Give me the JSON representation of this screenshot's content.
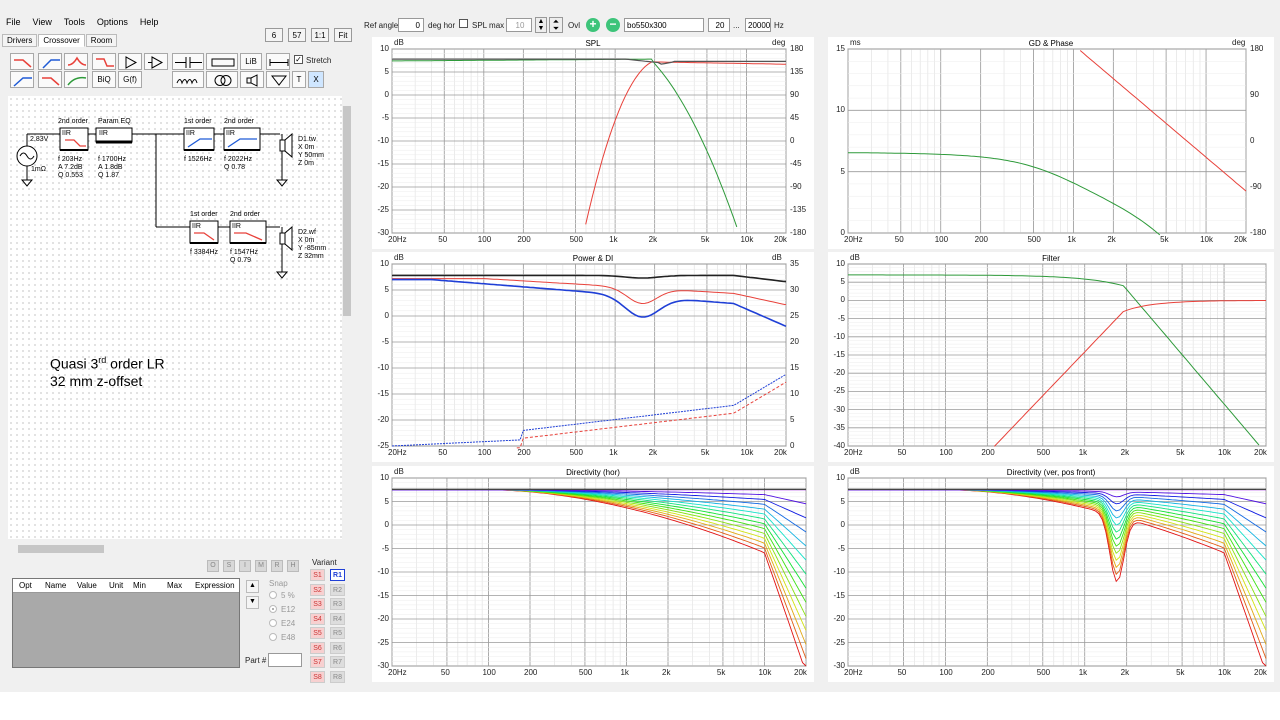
{
  "menu": [
    "File",
    "View",
    "Tools",
    "Options",
    "Help"
  ],
  "tabs": [
    "Drivers",
    "Crossover",
    "Room"
  ],
  "zoom_buttons": [
    "6",
    "57",
    "1:1",
    "Fit"
  ],
  "toolbar": {
    "lib": "LiB",
    "biq": "BiQ",
    "gf": "G(f)",
    "t": "T",
    "x": "X",
    "stretch": "Stretch"
  },
  "schematic": {
    "source_voltage": "2.83V",
    "source_impedance": "1mΩ",
    "blocks": {
      "b1": {
        "title": "2nd order",
        "type": "IIR",
        "params": [
          "f  203Hz",
          "A  7.2dB",
          "Q  0.553"
        ]
      },
      "b2": {
        "title": "Param EQ",
        "type": "IIR",
        "params": [
          "f   1700Hz",
          "A   1.8dB",
          "Q   1.87"
        ]
      },
      "b3": {
        "title": "1st order",
        "type": "IIR",
        "params": [
          "f   1526Hz"
        ]
      },
      "b4": {
        "title": "2nd order",
        "type": "IIR",
        "params": [
          "f   2022Hz",
          "Q  0.78"
        ]
      },
      "b5": {
        "title": "1st order",
        "type": "IIR",
        "params": [
          "f   3384Hz"
        ]
      },
      "b6": {
        "title": "2nd order",
        "type": "IIR",
        "params": [
          "f   1547Hz",
          "Q  0.79"
        ]
      }
    },
    "d1": [
      "D1.tw",
      "X 0m",
      "Y 50mm",
      "Z 0m"
    ],
    "d2": [
      "D2.wf",
      "X 0m",
      "Y -85mm",
      "Z 32mm"
    ]
  },
  "note": {
    "line1_a": "Quasi 3",
    "line1_sup": "rd",
    "line1_b": " order LR",
    "line2": "32 mm z-offset"
  },
  "param_table": {
    "columns": [
      "Opt",
      "Name",
      "Value",
      "Unit",
      "Min",
      "Max",
      "Expression"
    ]
  },
  "osimrh": [
    "O",
    "S",
    "I",
    "M",
    "R",
    "H"
  ],
  "snap": {
    "label": "Snap",
    "options": [
      "5 %",
      "E12",
      "E24",
      "E48"
    ],
    "selected": "E12"
  },
  "part_label": "Part #",
  "variant": {
    "label": "Variant",
    "s": [
      "S1",
      "S2",
      "S3",
      "S4",
      "S5",
      "S6",
      "S7",
      "S8"
    ],
    "r": [
      "R1",
      "R2",
      "R3",
      "R4",
      "R5",
      "R6",
      "R7",
      "R8"
    ],
    "active": "R1"
  },
  "topbar": {
    "ref_angle_label": "Ref angle",
    "ref_angle": "0",
    "deg_hor": "deg hor",
    "spl_max": "SPL max",
    "spl_max_val": "10",
    "ovl": "Ovl",
    "ovl_file": "bo550x300",
    "f_low": "20",
    "f_sep": "...",
    "f_high": "20000",
    "hz": "Hz"
  },
  "freq_ticks": [
    "20Hz",
    "50",
    "100",
    "200",
    "500",
    "1k",
    "2k",
    "5k",
    "10k",
    "20k"
  ],
  "panels": {
    "spl": {
      "title": "SPL",
      "unit_l": "dB",
      "unit_r": "deg",
      "yl": [
        "10",
        "5",
        "0",
        "-5",
        "-10",
        "-15",
        "-20",
        "-25",
        "-30"
      ],
      "yr": [
        "180",
        "135",
        "90",
        "45",
        "0",
        "-45",
        "-90",
        "-135",
        "-180"
      ]
    },
    "gd": {
      "title": "GD & Phase",
      "unit_l": "ms",
      "unit_r": "deg",
      "yl": [
        "15",
        "10",
        "5",
        "0"
      ],
      "yr": [
        "180",
        "90",
        "0",
        "-90",
        "-180"
      ]
    },
    "pdi": {
      "title": "Power & DI",
      "unit_l": "dB",
      "unit_r": "dB",
      "yl": [
        "10",
        "5",
        "0",
        "-5",
        "-10",
        "-15",
        "-20",
        "-25"
      ],
      "yr": [
        "35",
        "30",
        "25",
        "20",
        "15",
        "10",
        "5",
        "0"
      ]
    },
    "filter": {
      "title": "Filter",
      "unit_l": "dB",
      "yl": [
        "10",
        "5",
        "0",
        "-5",
        "-10",
        "-15",
        "-20",
        "-25",
        "-30",
        "-35",
        "-40"
      ]
    },
    "dirh": {
      "title": "Directivity (hor)",
      "unit_l": "dB",
      "yl": [
        "10",
        "5",
        "0",
        "-5",
        "-10",
        "-15",
        "-20",
        "-25",
        "-30"
      ]
    },
    "dirv": {
      "title": "Directivity (ver, pos front)",
      "unit_l": "dB",
      "yl": [
        "10",
        "5",
        "0",
        "-5",
        "-10",
        "-15",
        "-20",
        "-25",
        "-30"
      ]
    }
  },
  "colors": {
    "tweeter": "#e8413a",
    "woofer": "#2e9a3a",
    "sum": "#333333",
    "di": "#1f3fd6"
  }
}
